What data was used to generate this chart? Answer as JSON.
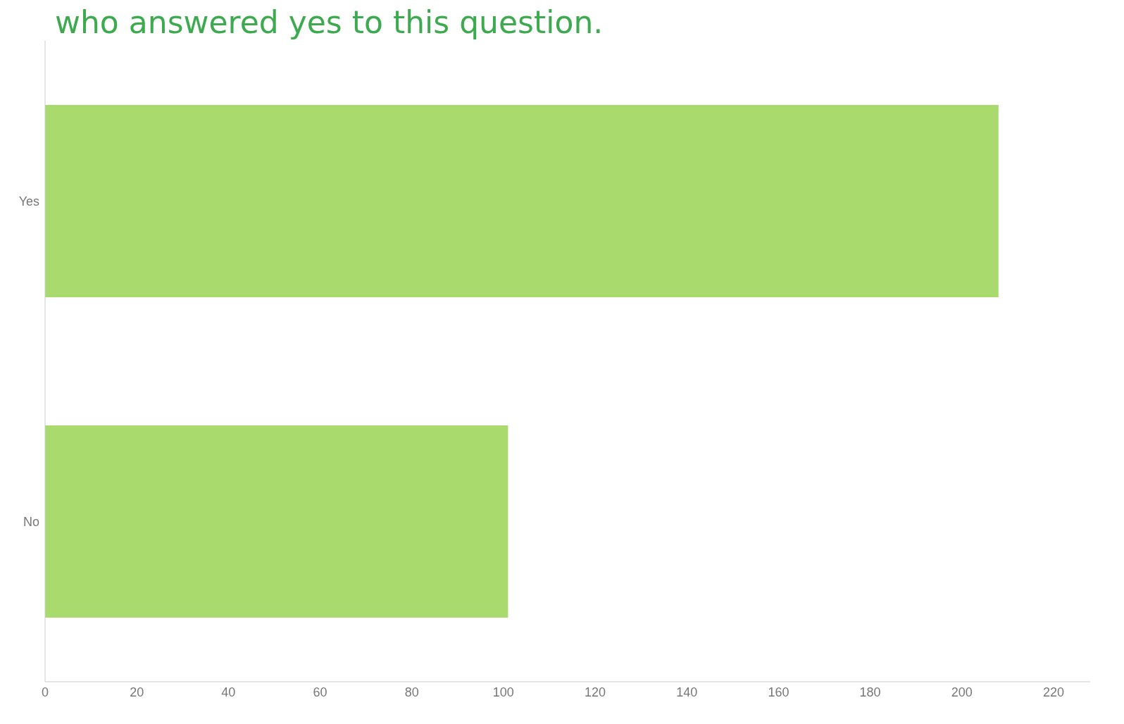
{
  "chart_data": {
    "type": "bar",
    "orientation": "horizontal",
    "title": "who answered yes to this question.",
    "categories": [
      "Yes",
      "No"
    ],
    "values": [
      208,
      101
    ],
    "color": "#a8da6e",
    "xlim": [
      0,
      228
    ],
    "xticks": [
      0,
      20,
      40,
      60,
      80,
      100,
      120,
      140,
      160,
      180,
      200,
      220
    ],
    "legend": false
  }
}
